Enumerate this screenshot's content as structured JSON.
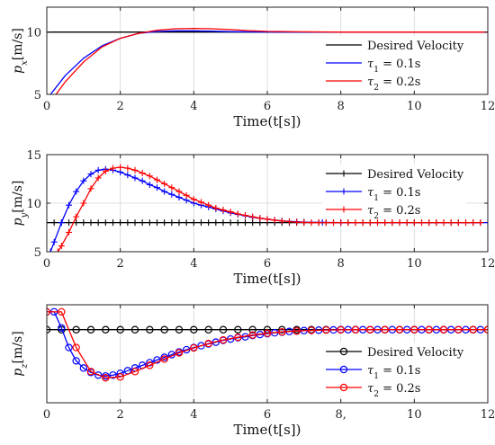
{
  "chart_data": [
    {
      "type": "line",
      "ylabel": "p_x[m/s]",
      "xlabel": "Time(t[s])",
      "xlim": [
        0,
        12
      ],
      "ylim": [
        5,
        12
      ],
      "xticks": [
        "0",
        "2",
        "4",
        "6",
        "8",
        "10",
        "12"
      ],
      "yticks": [
        {
          "v": 5,
          "label": "5"
        },
        {
          "v": 10,
          "label": "10"
        }
      ],
      "grid": true,
      "legend_position": "bottom-right",
      "series": [
        {
          "name": "Desired Velocity",
          "color": "#000000",
          "marker": "none",
          "x": [
            0,
            12
          ],
          "y": [
            10,
            10
          ]
        },
        {
          "name": "τ1 = 0.1s",
          "color": "#0000ff",
          "marker": "none",
          "x": [
            0.1,
            0.5,
            1.0,
            1.5,
            2.0,
            2.5,
            3.0,
            3.5,
            4.0,
            4.5,
            5.0,
            6.0,
            7.0,
            12.0
          ],
          "y": [
            5.0,
            6.5,
            7.9,
            8.9,
            9.5,
            9.9,
            10.05,
            10.1,
            10.1,
            10.07,
            10.04,
            10.01,
            10.0,
            10.0
          ]
        },
        {
          "name": "τ2 = 0.2s",
          "color": "#ff0000",
          "marker": "none",
          "x": [
            0.25,
            0.5,
            1.0,
            1.5,
            2.0,
            2.5,
            3.0,
            3.5,
            4.0,
            4.5,
            5.0,
            5.5,
            6.0,
            7.0,
            8.0,
            12.0
          ],
          "y": [
            5.0,
            6.0,
            7.6,
            8.8,
            9.5,
            9.9,
            10.15,
            10.27,
            10.3,
            10.27,
            10.2,
            10.12,
            10.06,
            10.02,
            10.0,
            10.0
          ]
        }
      ]
    },
    {
      "type": "line",
      "ylabel": "p_y[m/s]",
      "xlabel": "Time(t[s])",
      "xlim": [
        0,
        12
      ],
      "ylim": [
        5,
        15
      ],
      "xticks": [
        "0",
        "2",
        "4",
        "6",
        "8",
        "10",
        "12"
      ],
      "yticks": [
        {
          "v": 5,
          "label": "5"
        },
        {
          "v": 10,
          "label": "10"
        },
        {
          "v": 15,
          "label": "15"
        }
      ],
      "grid": true,
      "legend_position": "top-right",
      "series": [
        {
          "name": "Desired Velocity",
          "color": "#000000",
          "marker": "plus",
          "x": [
            0,
            0.2,
            0.4,
            0.6,
            0.8,
            1.0,
            1.2,
            1.4,
            1.6,
            1.8,
            2.0,
            2.2,
            2.4,
            2.6,
            2.8,
            3.0,
            3.2,
            3.4,
            3.6,
            3.8,
            4.0,
            4.2,
            4.4,
            4.6,
            4.8,
            5.0,
            5.2,
            5.4,
            5.6,
            5.8,
            6.0,
            6.2,
            6.4,
            6.6,
            6.8,
            7.0,
            7.2,
            7.4,
            7.6,
            7.8,
            8.0,
            8.2,
            8.4,
            8.6,
            8.8,
            9.0,
            9.2,
            9.4,
            9.6,
            9.8,
            10.0,
            10.2,
            10.4,
            10.6,
            10.8,
            11.0,
            11.2,
            11.4,
            11.6,
            11.8
          ],
          "y": [
            8,
            8,
            8,
            8,
            8,
            8,
            8,
            8,
            8,
            8,
            8,
            8,
            8,
            8,
            8,
            8,
            8,
            8,
            8,
            8,
            8,
            8,
            8,
            8,
            8,
            8,
            8,
            8,
            8,
            8,
            8,
            8,
            8,
            8,
            8,
            8,
            8,
            8,
            8,
            8,
            8,
            8,
            8,
            8,
            8,
            8,
            8,
            8,
            8,
            8,
            8,
            8,
            8,
            8,
            8,
            8,
            8,
            8,
            8,
            8
          ]
        },
        {
          "name": "τ1 = 0.1s",
          "color": "#0000ff",
          "marker": "plus",
          "x": [
            0.1,
            0.2,
            0.4,
            0.6,
            0.8,
            1.0,
            1.2,
            1.4,
            1.6,
            1.8,
            2.0,
            2.2,
            2.4,
            2.6,
            2.8,
            3.0,
            3.2,
            3.4,
            3.6,
            3.8,
            4.0,
            4.2,
            4.4,
            4.6,
            4.8,
            5.0,
            5.2,
            5.4,
            5.6,
            5.8,
            6.0,
            6.2,
            6.4,
            6.6,
            6.8,
            7.0,
            7.5,
            8.0,
            12.0
          ],
          "y": [
            5.0,
            6.0,
            8.0,
            9.8,
            11.2,
            12.3,
            13.0,
            13.4,
            13.5,
            13.4,
            13.2,
            12.9,
            12.6,
            12.3,
            11.9,
            11.6,
            11.2,
            10.9,
            10.6,
            10.3,
            10.0,
            9.8,
            9.6,
            9.4,
            9.2,
            9.0,
            8.85,
            8.7,
            8.55,
            8.45,
            8.35,
            8.25,
            8.18,
            8.12,
            8.08,
            8.05,
            8.02,
            8.0,
            8.0
          ]
        },
        {
          "name": "τ2 = 0.2s",
          "color": "#ff0000",
          "marker": "plus",
          "x": [
            0.3,
            0.4,
            0.6,
            0.8,
            1.0,
            1.2,
            1.4,
            1.6,
            1.8,
            2.0,
            2.2,
            2.4,
            2.6,
            2.8,
            3.0,
            3.2,
            3.4,
            3.6,
            3.8,
            4.0,
            4.2,
            4.4,
            4.6,
            4.8,
            5.0,
            5.2,
            5.4,
            5.6,
            5.8,
            6.0,
            6.2,
            6.4,
            6.6,
            6.8,
            7.0,
            7.2,
            7.4,
            7.6,
            7.8,
            8.0,
            8.2,
            8.4,
            8.6,
            8.8,
            9.0,
            9.2,
            9.4,
            9.6,
            9.8,
            10.0,
            10.2,
            10.4,
            10.6,
            10.8,
            11.0,
            11.2,
            11.4,
            11.6,
            11.8
          ],
          "y": [
            5.0,
            5.6,
            7.0,
            8.6,
            10.0,
            11.5,
            12.6,
            13.3,
            13.6,
            13.7,
            13.6,
            13.4,
            13.1,
            12.8,
            12.4,
            12.0,
            11.6,
            11.2,
            10.8,
            10.4,
            10.1,
            9.8,
            9.5,
            9.3,
            9.1,
            8.9,
            8.75,
            8.6,
            8.45,
            8.35,
            8.25,
            8.17,
            8.1,
            8.05,
            8.02,
            8.0,
            8.0,
            8.0,
            8.0,
            8.0,
            8.0,
            8.0,
            8.0,
            8.0,
            8.0,
            8.0,
            8.0,
            8.0,
            8.0,
            8.0,
            8.0,
            8.0,
            8.0,
            8.0,
            8.0,
            8.0,
            8.0,
            8.0,
            8.0
          ]
        }
      ]
    },
    {
      "type": "line",
      "ylabel": "p_z[m/s]",
      "xlabel": "Time(t[s])",
      "xlim": [
        0,
        12
      ],
      "ylim": [
        -5.2,
        5.8
      ],
      "xticks": [
        "0",
        "2",
        "4",
        "6",
        "8,",
        "10",
        "12"
      ],
      "yticks": [],
      "grid": true,
      "legend_position": "bottom-right",
      "series": [
        {
          "name": "Desired Velocity",
          "color": "#000000",
          "marker": "circle",
          "x": [
            0,
            0.4,
            0.8,
            1.2,
            1.6,
            2.0,
            2.4,
            2.8,
            3.2,
            3.6,
            4.0,
            4.4,
            4.8,
            5.2,
            5.6,
            6.0,
            6.4,
            6.8,
            7.2,
            7.6,
            8.0,
            8.4,
            8.8,
            9.2,
            9.6,
            10.0,
            10.4,
            10.8,
            11.2,
            11.6,
            12.0
          ],
          "y": [
            3,
            3,
            3,
            3,
            3,
            3,
            3,
            3,
            3,
            3,
            3,
            3,
            3,
            3,
            3,
            3,
            3,
            3,
            3,
            3,
            3,
            3,
            3,
            3,
            3,
            3,
            3,
            3,
            3,
            3,
            3
          ]
        },
        {
          "name": "τ1 = 0.1s",
          "color": "#0000ff",
          "marker": "circle",
          "x": [
            0.0,
            0.2,
            0.4,
            0.6,
            0.8,
            1.0,
            1.2,
            1.4,
            1.6,
            1.8,
            2.0,
            2.2,
            2.4,
            2.6,
            2.8,
            3.0,
            3.2,
            3.4,
            3.6,
            3.8,
            4.0,
            4.2,
            4.4,
            4.6,
            4.8,
            5.0,
            5.2,
            5.4,
            5.6,
            5.8,
            6.0,
            6.2,
            6.4,
            6.6,
            6.8,
            7.0,
            7.2,
            7.4,
            7.6,
            7.8,
            8.0,
            8.2,
            8.4,
            8.6,
            8.8,
            9.0,
            9.2,
            9.4,
            9.6,
            9.8,
            10.0,
            10.2,
            10.4,
            10.6,
            10.8,
            11.0,
            11.2,
            11.4,
            11.6,
            11.8
          ],
          "y": [
            5.0,
            5.0,
            3.2,
            1.0,
            -0.5,
            -1.3,
            -1.8,
            -2.1,
            -2.2,
            -2.1,
            -1.9,
            -1.6,
            -1.3,
            -1.0,
            -0.7,
            -0.4,
            -0.1,
            0.2,
            0.5,
            0.75,
            1.0,
            1.2,
            1.4,
            1.6,
            1.8,
            1.95,
            2.1,
            2.2,
            2.35,
            2.45,
            2.55,
            2.65,
            2.72,
            2.8,
            2.85,
            2.9,
            2.92,
            2.95,
            2.97,
            2.98,
            3.0,
            3.0,
            3.0,
            3.0,
            3.0,
            3.0,
            3.0,
            3.0,
            3.0,
            3.0,
            3.0,
            3.0,
            3.0,
            3.0,
            3.0,
            3.0,
            3.0,
            3.0,
            3.0,
            3.0
          ]
        },
        {
          "name": "τ2 = 0.2s",
          "color": "#ff0000",
          "marker": "circle",
          "x": [
            0.0,
            0.4,
            0.8,
            1.2,
            1.6,
            2.0,
            2.4,
            2.8,
            3.2,
            3.6,
            4.0,
            4.4,
            4.8,
            5.2,
            5.6,
            6.0,
            6.4,
            6.8,
            7.2,
            7.6,
            8.0,
            8.4,
            8.8,
            9.2,
            9.6,
            10.0,
            10.4,
            10.8,
            11.2,
            11.6,
            12.0
          ],
          "y": [
            5.0,
            5.0,
            1.0,
            -1.7,
            -2.4,
            -2.3,
            -1.7,
            -1.0,
            -0.3,
            0.4,
            0.95,
            1.45,
            1.85,
            2.15,
            2.4,
            2.6,
            2.75,
            2.85,
            2.92,
            2.96,
            2.98,
            3.0,
            3.0,
            3.0,
            3.0,
            3.0,
            3.0,
            3.0,
            3.0,
            3.0,
            3.0
          ]
        }
      ]
    }
  ]
}
